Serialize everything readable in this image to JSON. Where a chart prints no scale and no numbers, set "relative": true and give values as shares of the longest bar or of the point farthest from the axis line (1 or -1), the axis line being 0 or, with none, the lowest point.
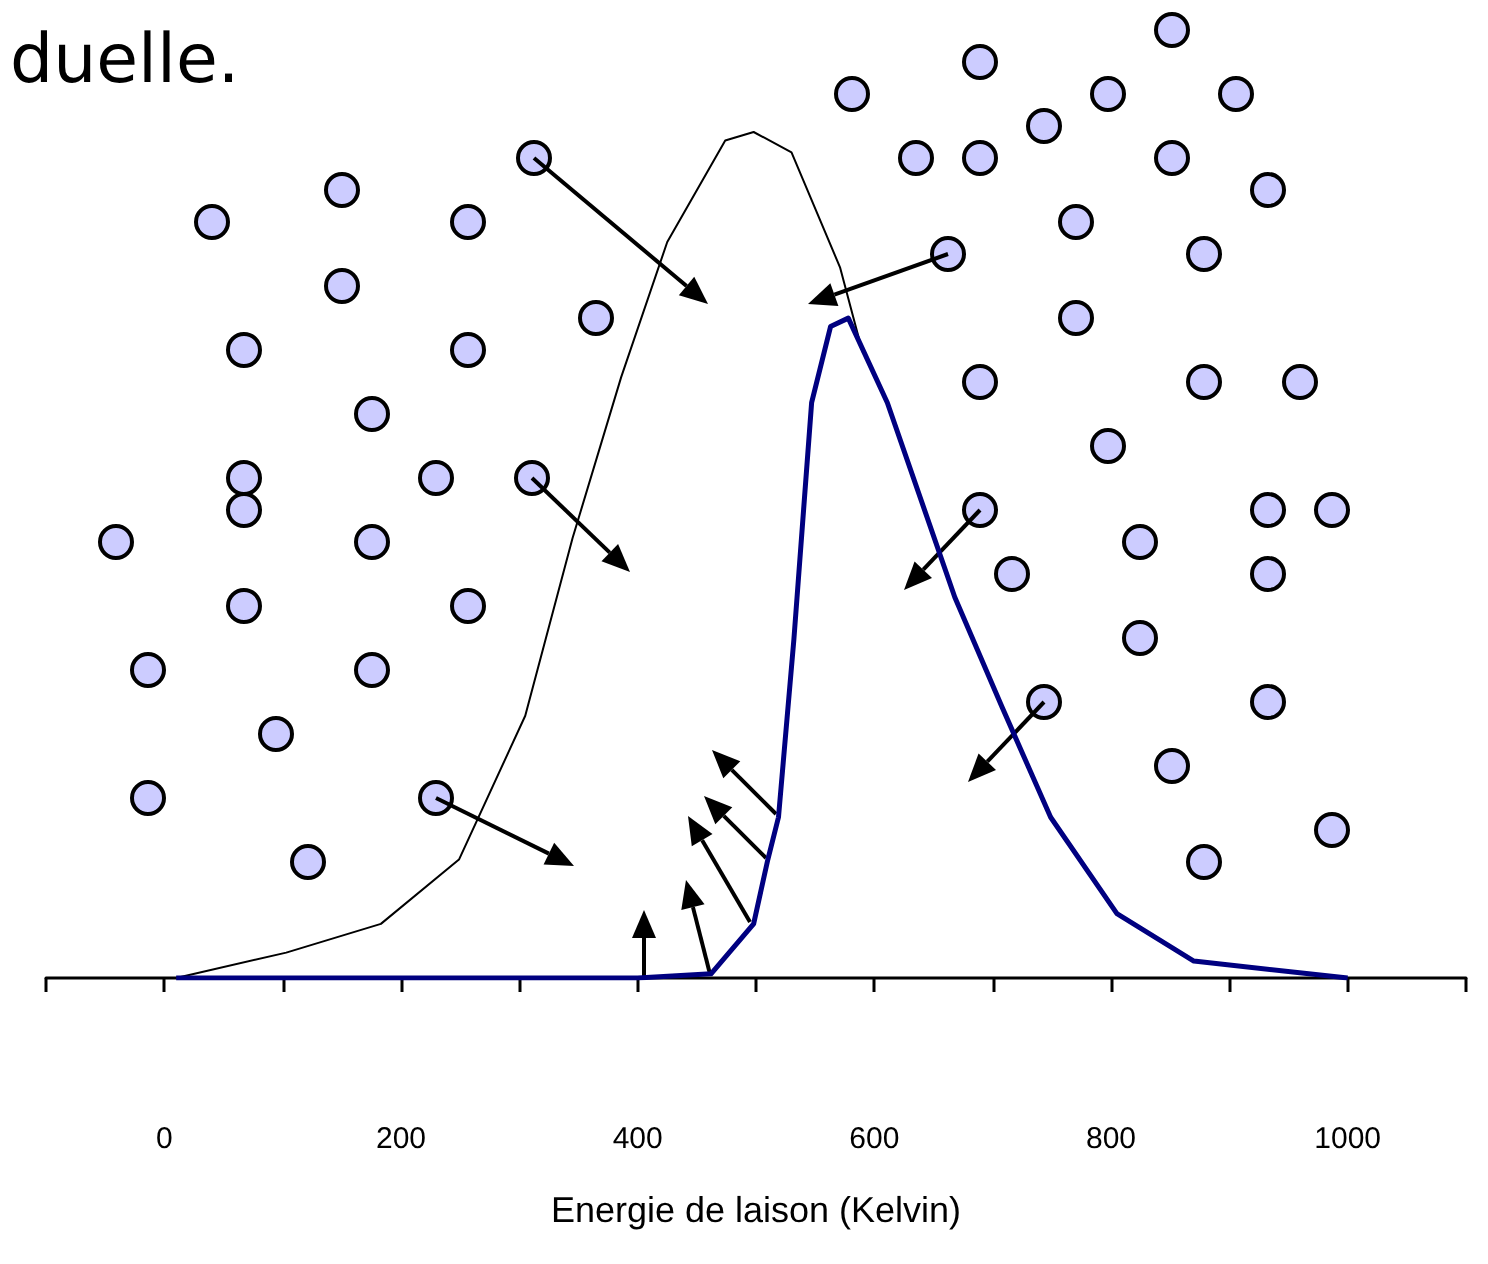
{
  "chart_data": {
    "type": "line",
    "title": "duelle.",
    "xlabel": "Energie de laison (Kelvin)",
    "relative": true,
    "marker": "none",
    "grid": false,
    "xlim": [
      -100,
      1100
    ],
    "xticks": [
      {
        "value": -100,
        "label": null
      },
      0,
      {
        "value": 100,
        "label": null
      },
      200,
      {
        "value": 300,
        "label": null
      },
      400,
      {
        "value": 500,
        "label": null
      },
      600,
      {
        "value": 700,
        "label": null
      },
      800,
      {
        "value": 900,
        "label": null
      },
      1000,
      {
        "value": 1100,
        "label": null
      }
    ],
    "series": [
      {
        "color": "#000000",
        "x": [
          10,
          103,
          183,
          249,
          305,
          345,
          386,
          425,
          474,
          498,
          530,
          571,
          590
        ],
        "values": [
          0,
          0.03,
          0.064,
          0.14,
          0.31,
          0.52,
          0.71,
          0.87,
          0.99,
          1,
          0.976,
          0.84,
          0.74
        ]
      },
      {
        "color": "#000080",
        "x": [
          10,
          400,
          462,
          498,
          510,
          519,
          532,
          547,
          563,
          578,
          611,
          668,
          708,
          749,
          805,
          870,
          1000
        ],
        "values": [
          0,
          0,
          0.005,
          0.064,
          0.14,
          0.19,
          0.4,
          0.68,
          0.77,
          0.78,
          0.68,
          0.45,
          0.32,
          0.19,
          0.076,
          0.02,
          0
        ]
      }
    ]
  }
}
